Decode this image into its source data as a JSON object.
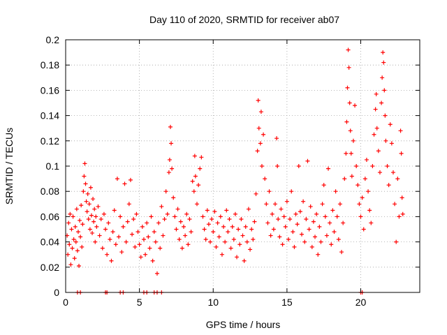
{
  "chart_data": {
    "type": "scatter",
    "title": "Day 110 of 2020, SRMTID for receiver ab07",
    "xlabel": "GPS time / hours",
    "ylabel": "SRMTID / TECUs",
    "xlim": [
      0,
      24
    ],
    "ylim": [
      0,
      0.2
    ],
    "grid": true,
    "marker": "+",
    "color": "#ff0000",
    "xticks": [
      0,
      5,
      10,
      15,
      20
    ],
    "xtick_labels": [
      "0",
      "5",
      "10",
      "15",
      "20"
    ],
    "yticks": [
      0,
      0.02,
      0.04,
      0.06,
      0.08,
      0.1,
      0.12,
      0.14,
      0.16,
      0.18,
      0.2
    ],
    "ytick_labels": [
      "0",
      "0.02",
      "0.04",
      "0.06",
      "0.08",
      "0.1",
      "0.12",
      "0.14",
      "0.16",
      "0.18",
      "0.2"
    ],
    "series": [
      {
        "name": "SRMTID",
        "points": [
          [
            0.1,
            0.045
          ],
          [
            0.15,
            0.03
          ],
          [
            0.2,
            0.055
          ],
          [
            0.25,
            0.038
          ],
          [
            0.3,
            0.062
          ],
          [
            0.35,
            0.022
          ],
          [
            0.4,
            0.05
          ],
          [
            0.45,
            0.035
          ],
          [
            0.5,
            0.06
          ],
          [
            0.55,
            0.042
          ],
          [
            0.6,
            0.027
          ],
          [
            0.65,
            0.052
          ],
          [
            0.7,
            0.04
          ],
          [
            0.75,
            0.066
          ],
          [
            0.8,
            0.033
          ],
          [
            0.85,
            0.048
          ],
          [
            0.9,
            0.021
          ],
          [
            0.95,
            0.057
          ],
          [
            1.0,
            0.044
          ],
          [
            1.05,
            0.069
          ],
          [
            1.1,
            0.036
          ],
          [
            1.15,
            0.054
          ],
          [
            1.2,
            0.08
          ],
          [
            1.25,
            0.092
          ],
          [
            1.3,
            0.102
          ],
          [
            1.35,
            0.086
          ],
          [
            1.4,
            0.072
          ],
          [
            1.45,
            0.064
          ],
          [
            1.5,
            0.078
          ],
          [
            1.55,
            0.058
          ],
          [
            1.6,
            0.07
          ],
          [
            1.65,
            0.05
          ],
          [
            1.7,
            0.083
          ],
          [
            1.75,
            0.061
          ],
          [
            1.8,
            0.047
          ],
          [
            1.85,
            0.074
          ],
          [
            1.9,
            0.056
          ],
          [
            1.95,
            0.066
          ],
          [
            2.0,
            0.04
          ],
          [
            2.05,
            0.06
          ],
          [
            2.1,
            0.052
          ],
          [
            2.2,
            0.068
          ],
          [
            2.3,
            0.045
          ],
          [
            2.4,
            0.058
          ],
          [
            2.5,
            0.035
          ],
          [
            2.6,
            0.062
          ],
          [
            2.7,
            0.05
          ],
          [
            2.8,
            0.03
          ],
          [
            2.9,
            0.055
          ],
          [
            3.0,
            0.042
          ],
          [
            3.1,
            0.025
          ],
          [
            3.2,
            0.048
          ],
          [
            3.3,
            0.065
          ],
          [
            3.4,
            0.038
          ],
          [
            3.5,
            0.09
          ],
          [
            3.6,
            0.044
          ],
          [
            3.7,
            0.06
          ],
          [
            3.8,
            0.032
          ],
          [
            3.9,
            0.052
          ],
          [
            4.0,
            0.086
          ],
          [
            4.1,
            0.04
          ],
          [
            4.2,
            0.056
          ],
          [
            4.3,
            0.07
          ],
          [
            4.4,
            0.089
          ],
          [
            4.5,
            0.046
          ],
          [
            4.6,
            0.058
          ],
          [
            4.7,
            0.036
          ],
          [
            4.8,
            0.062
          ],
          [
            4.9,
            0.048
          ],
          [
            5.0,
            0.038
          ],
          [
            5.1,
            0.028
          ],
          [
            5.2,
            0.052
          ],
          [
            5.3,
            0.042
          ],
          [
            5.4,
            0.03
          ],
          [
            5.5,
            0.055
          ],
          [
            5.6,
            0.044
          ],
          [
            5.7,
            0.035
          ],
          [
            5.8,
            0.06
          ],
          [
            5.9,
            0.025
          ],
          [
            6.0,
            0.048
          ],
          [
            6.1,
            0.04
          ],
          [
            6.2,
            0.015
          ],
          [
            6.3,
            0.055
          ],
          [
            6.4,
            0.035
          ],
          [
            6.5,
            0.068
          ],
          [
            6.6,
            0.045
          ],
          [
            6.7,
            0.058
          ],
          [
            6.8,
            0.08
          ],
          [
            6.9,
            0.062
          ],
          [
            7.0,
            0.095
          ],
          [
            7.05,
            0.105
          ],
          [
            7.1,
            0.131
          ],
          [
            7.15,
            0.118
          ],
          [
            7.2,
            0.098
          ],
          [
            7.3,
            0.075
          ],
          [
            7.4,
            0.06
          ],
          [
            7.5,
            0.05
          ],
          [
            7.6,
            0.066
          ],
          [
            7.7,
            0.042
          ],
          [
            7.8,
            0.056
          ],
          [
            7.9,
            0.035
          ],
          [
            8.0,
            0.052
          ],
          [
            8.1,
            0.045
          ],
          [
            8.2,
            0.062
          ],
          [
            8.3,
            0.038
          ],
          [
            8.4,
            0.058
          ],
          [
            8.5,
            0.048
          ],
          [
            8.6,
            0.088
          ],
          [
            8.7,
            0.08
          ],
          [
            8.75,
            0.108
          ],
          [
            8.8,
            0.092
          ],
          [
            8.9,
            0.07
          ],
          [
            9.0,
            0.085
          ],
          [
            9.1,
            0.098
          ],
          [
            9.2,
            0.107
          ],
          [
            9.3,
            0.06
          ],
          [
            9.4,
            0.05
          ],
          [
            9.5,
            0.042
          ],
          [
            9.6,
            0.065
          ],
          [
            9.7,
            0.054
          ],
          [
            9.8,
            0.04
          ],
          [
            9.9,
            0.058
          ],
          [
            10.0,
            0.048
          ],
          [
            10.1,
            0.064
          ],
          [
            10.2,
            0.036
          ],
          [
            10.3,
            0.055
          ],
          [
            10.4,
            0.044
          ],
          [
            10.5,
            0.06
          ],
          [
            10.6,
            0.03
          ],
          [
            10.7,
            0.052
          ],
          [
            10.8,
            0.04
          ],
          [
            10.9,
            0.065
          ],
          [
            11.0,
            0.048
          ],
          [
            11.1,
            0.058
          ],
          [
            11.2,
            0.035
          ],
          [
            11.3,
            0.052
          ],
          [
            11.4,
            0.042
          ],
          [
            11.5,
            0.062
          ],
          [
            11.6,
            0.028
          ],
          [
            11.7,
            0.05
          ],
          [
            11.8,
            0.038
          ],
          [
            11.9,
            0.058
          ],
          [
            12.0,
            0.045
          ],
          [
            12.1,
            0.025
          ],
          [
            12.2,
            0.052
          ],
          [
            12.3,
            0.04
          ],
          [
            12.4,
            0.066
          ],
          [
            12.5,
            0.034
          ],
          [
            12.6,
            0.05
          ],
          [
            12.7,
            0.042
          ],
          [
            12.8,
            0.056
          ],
          [
            12.9,
            0.078
          ],
          [
            13.0,
            0.112
          ],
          [
            13.05,
            0.152
          ],
          [
            13.1,
            0.13
          ],
          [
            13.2,
            0.118
          ],
          [
            13.25,
            0.143
          ],
          [
            13.3,
            0.1
          ],
          [
            13.4,
            0.125
          ],
          [
            13.5,
            0.09
          ],
          [
            13.6,
            0.07
          ],
          [
            13.7,
            0.055
          ],
          [
            13.8,
            0.08
          ],
          [
            13.9,
            0.045
          ],
          [
            14.0,
            0.062
          ],
          [
            14.1,
            0.05
          ],
          [
            14.2,
            0.07
          ],
          [
            14.3,
            0.122
          ],
          [
            14.35,
            0.1
          ],
          [
            14.4,
            0.058
          ],
          [
            14.5,
            0.044
          ],
          [
            14.6,
            0.066
          ],
          [
            14.7,
            0.038
          ],
          [
            14.8,
            0.06
          ],
          [
            14.9,
            0.052
          ],
          [
            15.0,
            0.072
          ],
          [
            15.1,
            0.042
          ],
          [
            15.2,
            0.058
          ],
          [
            15.3,
            0.08
          ],
          [
            15.4,
            0.048
          ],
          [
            15.5,
            0.036
          ],
          [
            15.6,
            0.062
          ],
          [
            15.7,
            0.054
          ],
          [
            15.8,
            0.1
          ],
          [
            15.9,
            0.064
          ],
          [
            16.0,
            0.046
          ],
          [
            16.1,
            0.072
          ],
          [
            16.2,
            0.04
          ],
          [
            16.3,
            0.058
          ],
          [
            16.4,
            0.104
          ],
          [
            16.5,
            0.05
          ],
          [
            16.6,
            0.068
          ],
          [
            16.7,
            0.036
          ],
          [
            16.8,
            0.056
          ],
          [
            16.9,
            0.044
          ],
          [
            17.0,
            0.062
          ],
          [
            17.1,
            0.03
          ],
          [
            17.2,
            0.052
          ],
          [
            17.3,
            0.04
          ],
          [
            17.4,
            0.07
          ],
          [
            17.5,
            0.085
          ],
          [
            17.6,
            0.06
          ],
          [
            17.7,
            0.045
          ],
          [
            17.8,
            0.098
          ],
          [
            17.9,
            0.055
          ],
          [
            18.0,
            0.038
          ],
          [
            18.1,
            0.065
          ],
          [
            18.2,
            0.048
          ],
          [
            18.3,
            0.08
          ],
          [
            18.4,
            0.06
          ],
          [
            18.5,
            0.042
          ],
          [
            18.6,
            0.07
          ],
          [
            18.7,
            0.032
          ],
          [
            18.8,
            0.055
          ],
          [
            18.9,
            0.09
          ],
          [
            19.0,
            0.11
          ],
          [
            19.05,
            0.135
          ],
          [
            19.1,
            0.162
          ],
          [
            19.15,
            0.192
          ],
          [
            19.2,
            0.178
          ],
          [
            19.25,
            0.15
          ],
          [
            19.3,
            0.128
          ],
          [
            19.35,
            0.11
          ],
          [
            19.4,
            0.092
          ],
          [
            19.5,
            0.12
          ],
          [
            19.6,
            0.148
          ],
          [
            19.7,
            0.1
          ],
          [
            19.8,
            0.085
          ],
          [
            19.9,
            0.07
          ],
          [
            20.0,
            0.06
          ],
          [
            20.1,
            0.075
          ],
          [
            20.2,
            0.05
          ],
          [
            20.3,
            0.09
          ],
          [
            20.4,
            0.105
          ],
          [
            20.5,
            0.08
          ],
          [
            20.6,
            0.065
          ],
          [
            20.7,
            0.055
          ],
          [
            20.8,
            0.1
          ],
          [
            20.9,
            0.125
          ],
          [
            21.0,
            0.145
          ],
          [
            21.05,
            0.157
          ],
          [
            21.1,
            0.13
          ],
          [
            21.2,
            0.112
          ],
          [
            21.3,
            0.095
          ],
          [
            21.4,
            0.15
          ],
          [
            21.45,
            0.17
          ],
          [
            21.5,
            0.19
          ],
          [
            21.55,
            0.182
          ],
          [
            21.6,
            0.16
          ],
          [
            21.65,
            0.14
          ],
          [
            21.7,
            0.12
          ],
          [
            21.8,
            0.1
          ],
          [
            21.9,
            0.085
          ],
          [
            22.0,
            0.133
          ],
          [
            22.1,
            0.118
          ],
          [
            22.2,
            0.095
          ],
          [
            22.3,
            0.07
          ],
          [
            22.4,
            0.04
          ],
          [
            22.5,
            0.09
          ],
          [
            22.6,
            0.06
          ],
          [
            22.7,
            0.128
          ],
          [
            22.75,
            0.11
          ],
          [
            22.8,
            0.075
          ],
          [
            22.85,
            0.062
          ],
          [
            0.8,
            0.0
          ],
          [
            1.0,
            0.0
          ],
          [
            2.7,
            0.0
          ],
          [
            2.8,
            0.0
          ],
          [
            3.7,
            0.0
          ],
          [
            3.9,
            0.0
          ],
          [
            5.3,
            0.0
          ],
          [
            5.5,
            0.0
          ],
          [
            6.0,
            0.0
          ],
          [
            6.2,
            0.0
          ],
          [
            6.5,
            0.0
          ],
          [
            20.0,
            0.0
          ],
          [
            20.1,
            0.0
          ]
        ]
      }
    ]
  }
}
